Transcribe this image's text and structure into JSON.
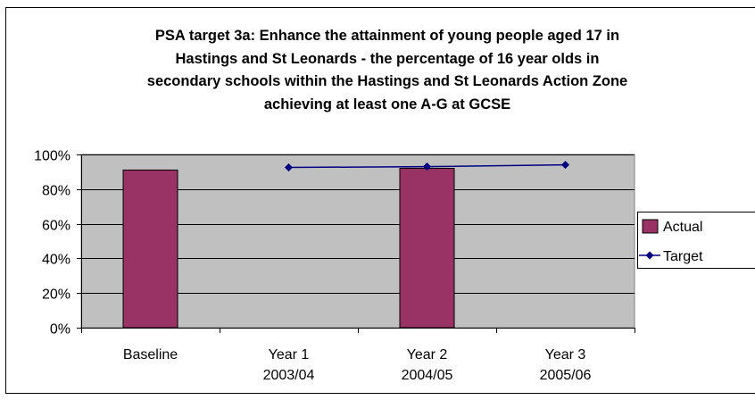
{
  "chart_data": {
    "type": "bar",
    "title": [
      "PSA target 3a: Enhance the attainment of young people aged 17 in",
      "Hastings and St Leonards - the percentage of 16 year olds in",
      "secondary schools within the Hastings and St Leonards Action Zone",
      "achieving at least one A-G at GCSE"
    ],
    "categories": [
      [
        "Baseline",
        ""
      ],
      [
        "Year 1",
        "2003/04"
      ],
      [
        "Year 2",
        "2004/05"
      ],
      [
        "Year 3",
        "2005/06"
      ]
    ],
    "series": [
      {
        "name": "Actual",
        "type": "bar",
        "color": "#993366",
        "values": [
          91,
          null,
          92,
          null
        ]
      },
      {
        "name": "Target",
        "type": "line",
        "color": "#000080",
        "values": [
          null,
          92.5,
          93,
          94
        ]
      }
    ],
    "yaxis": {
      "min": 0,
      "max": 100,
      "ticks": [
        "0%",
        "20%",
        "40%",
        "60%",
        "80%",
        "100%"
      ]
    },
    "plot_background": "#c0c0c0",
    "grid": true,
    "legend_position": "right"
  }
}
